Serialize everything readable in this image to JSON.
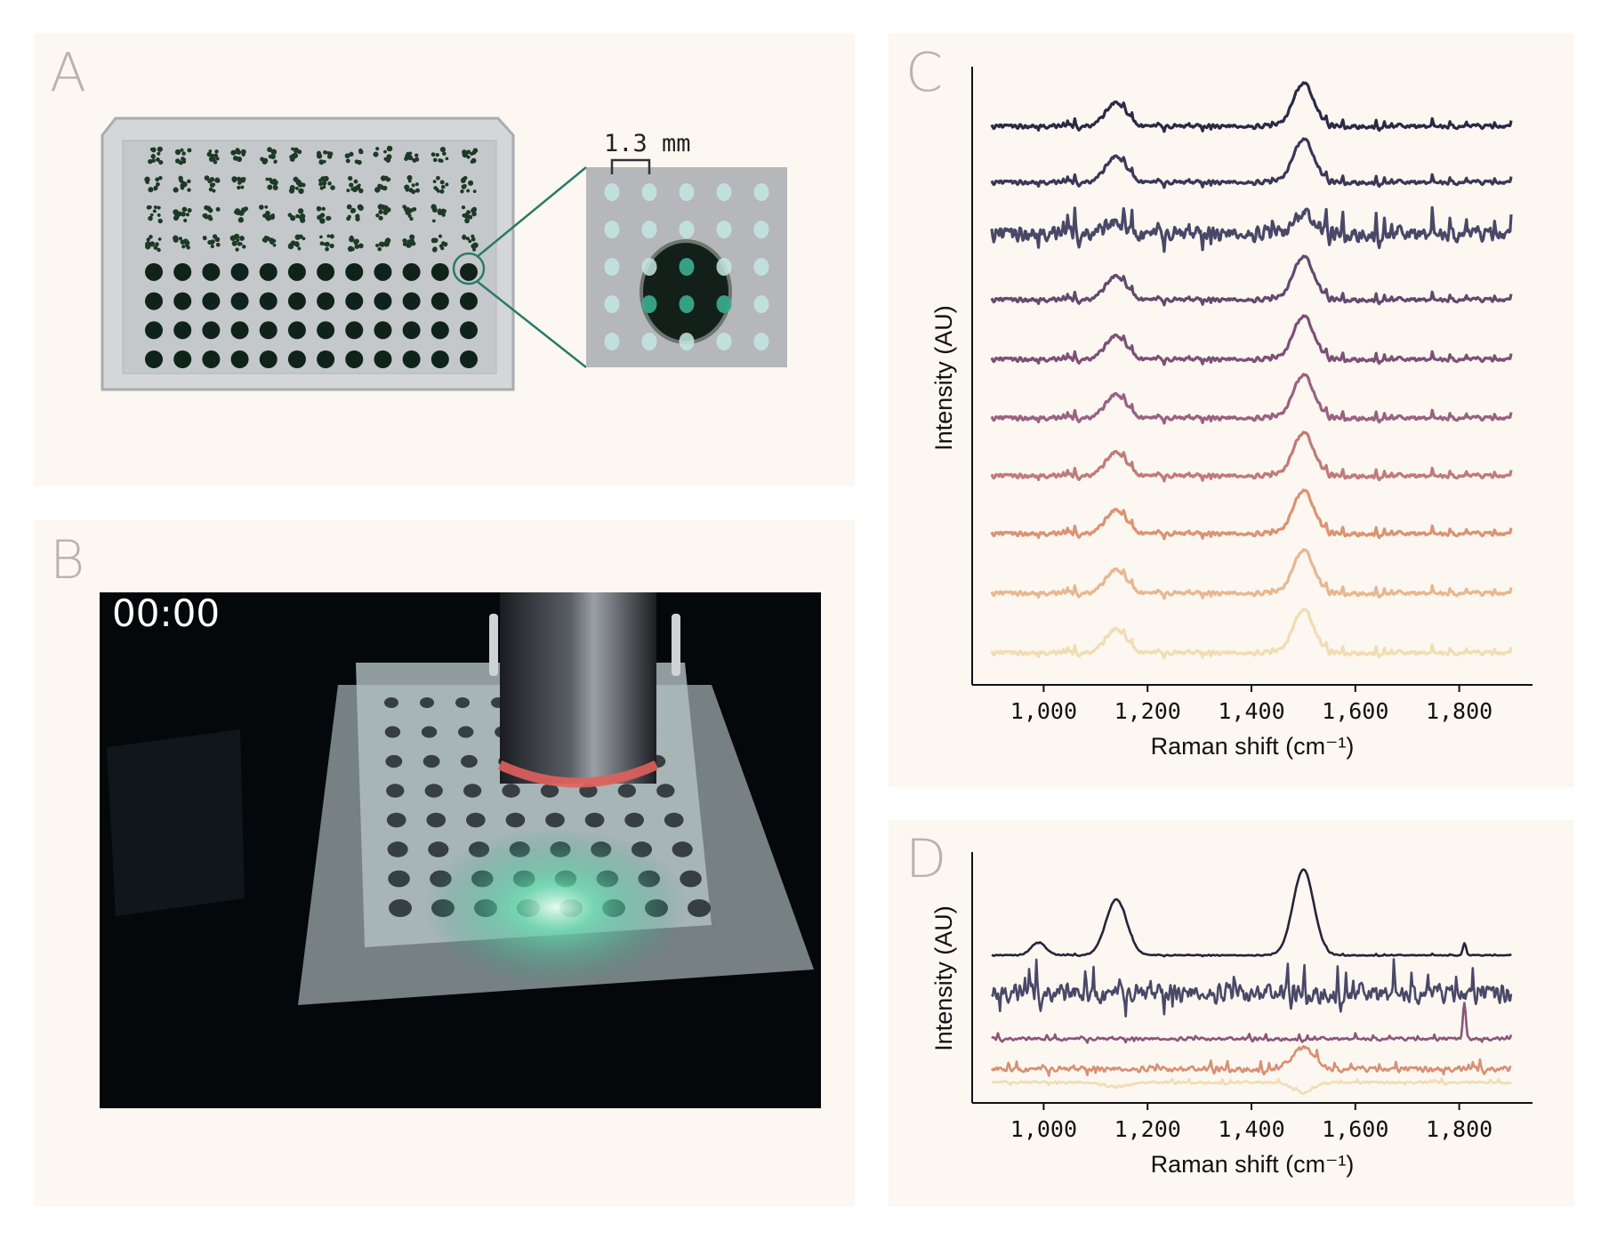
{
  "panels": {
    "a": {
      "letter": "A",
      "scale_label": "1.3 mm",
      "highlight_color": "#2a7a68"
    },
    "b": {
      "letter": "B",
      "timestamp": "00:00"
    },
    "c": {
      "letter": "C"
    },
    "d": {
      "letter": "D"
    }
  },
  "chart_data": [
    {
      "panel": "C",
      "type": "line",
      "xlabel": "Raman shift (cm⁻¹)",
      "ylabel": "Intensity (AU)",
      "xlim": [
        900,
        1900
      ],
      "xticks": [
        "1,000",
        "1,200",
        "1,400",
        "1,600",
        "1,800"
      ],
      "xtick_values": [
        1000,
        1200,
        1400,
        1600,
        1800
      ],
      "y_ticks_shown": false,
      "stacked_offset": true,
      "grid": false,
      "series": [
        {
          "color": "#2b2a45",
          "peaks": [
            [
              1140,
              0.55
            ],
            [
              1500,
              1.0
            ]
          ],
          "noise": 0.22
        },
        {
          "color": "#3a3856",
          "peaks": [
            [
              1140,
              0.6
            ],
            [
              1500,
              1.0
            ]
          ],
          "noise": 0.22
        },
        {
          "color": "#4a4868",
          "peaks": [
            [
              1140,
              0.25
            ],
            [
              1500,
              0.45
            ]
          ],
          "noise": 0.75
        },
        {
          "color": "#63496d",
          "peaks": [
            [
              1140,
              0.55
            ],
            [
              1500,
              1.0
            ]
          ],
          "noise": 0.22
        },
        {
          "color": "#7d5076",
          "peaks": [
            [
              1140,
              0.55
            ],
            [
              1500,
              1.0
            ]
          ],
          "noise": 0.22
        },
        {
          "color": "#9a6180",
          "peaks": [
            [
              1140,
              0.55
            ],
            [
              1500,
              1.0
            ]
          ],
          "noise": 0.22
        },
        {
          "color": "#c07a79",
          "peaks": [
            [
              1140,
              0.55
            ],
            [
              1500,
              1.0
            ]
          ],
          "noise": 0.22
        },
        {
          "color": "#db9373",
          "peaks": [
            [
              1140,
              0.55
            ],
            [
              1500,
              1.0
            ]
          ],
          "noise": 0.22
        },
        {
          "color": "#e8b78f",
          "peaks": [
            [
              1140,
              0.55
            ],
            [
              1500,
              1.0
            ]
          ],
          "noise": 0.22
        },
        {
          "color": "#f0ddb2",
          "peaks": [
            [
              1140,
              0.55
            ],
            [
              1500,
              1.0
            ]
          ],
          "noise": 0.22
        }
      ]
    },
    {
      "panel": "D",
      "type": "line",
      "xlabel": "Raman shift (cm⁻¹)",
      "ylabel": "Intensity (AU)",
      "xlim": [
        900,
        1900
      ],
      "xticks": [
        "1,000",
        "1,200",
        "1,400",
        "1,600",
        "1,800"
      ],
      "xtick_values": [
        1000,
        1200,
        1400,
        1600,
        1800
      ],
      "y_ticks_shown": false,
      "stacked_offset": true,
      "grid": false,
      "series": [
        {
          "color": "#25243a",
          "peaks": [
            [
              990,
              0.13
            ],
            [
              1140,
              0.56
            ],
            [
              1500,
              0.86
            ],
            [
              1810,
              0.12
            ]
          ],
          "noise": 0.02
        },
        {
          "color": "#4a4868",
          "peaks": [],
          "noise": 0.42
        },
        {
          "color": "#8a5678",
          "peaks": [
            [
              1810,
              0.35
            ]
          ],
          "noise": 0.07
        },
        {
          "color": "#d98f73",
          "peaks": [
            [
              1500,
              0.22
            ]
          ],
          "noise": 0.12
        },
        {
          "color": "#f0ddb2",
          "peaks": [
            [
              1140,
              -0.05
            ],
            [
              1500,
              -0.1
            ]
          ],
          "noise": 0.05
        }
      ]
    }
  ]
}
